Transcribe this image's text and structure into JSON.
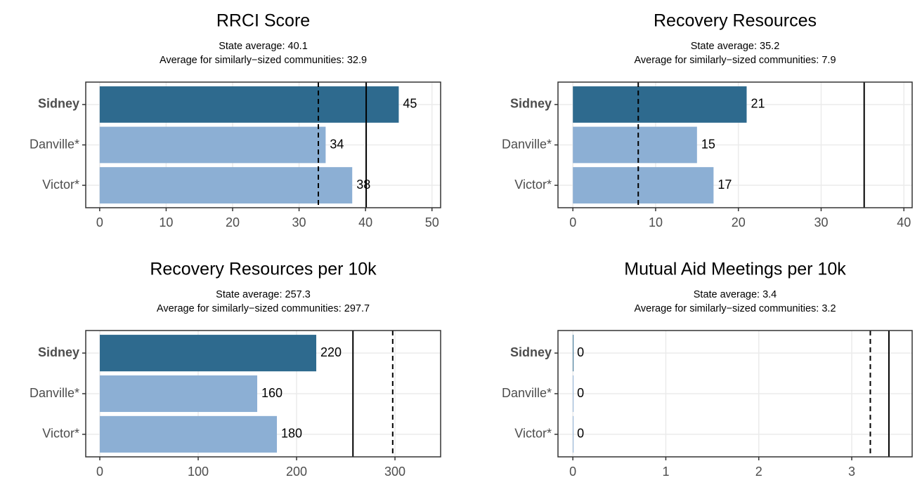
{
  "chart_data": [
    {
      "type": "bar",
      "orientation": "horizontal",
      "title": "RRCI Score",
      "reference_lines": [
        {
          "label": "State average: 40.1",
          "value": 40.1,
          "style": "solid"
        },
        {
          "label": "Average for similarly−sized communities: 32.9",
          "value": 32.9,
          "style": "dashed"
        }
      ],
      "categories": [
        "Sidney",
        "Danville*",
        "Victor*"
      ],
      "values": [
        45,
        34,
        38
      ],
      "colors": [
        "#2e6a8e",
        "#8cafd4",
        "#8cafd4"
      ],
      "highlight": 0,
      "xlim": [
        -2.1,
        51.3
      ],
      "xticks": [
        0,
        10,
        20,
        30,
        40,
        50
      ],
      "grid": true
    },
    {
      "type": "bar",
      "orientation": "horizontal",
      "title": "Recovery Resources",
      "reference_lines": [
        {
          "label": "State average: 35.2",
          "value": 35.2,
          "style": "solid"
        },
        {
          "label": "Average for similarly−sized communities: 7.9",
          "value": 7.9,
          "style": "dashed"
        }
      ],
      "categories": [
        "Sidney",
        "Danville*",
        "Victor*"
      ],
      "values": [
        21,
        15,
        17
      ],
      "colors": [
        "#2e6a8e",
        "#8cafd4",
        "#8cafd4"
      ],
      "highlight": 0,
      "xlim": [
        -1.8,
        41.0
      ],
      "xticks": [
        0,
        10,
        20,
        30,
        40
      ],
      "grid": true
    },
    {
      "type": "bar",
      "orientation": "horizontal",
      "title": "Recovery Resources per 10k",
      "reference_lines": [
        {
          "label": "State average: 257.3",
          "value": 257.3,
          "style": "solid"
        },
        {
          "label": "Average for similarly−sized communities: 297.7",
          "value": 297.7,
          "style": "dashed"
        }
      ],
      "categories": [
        "Sidney",
        "Danville*",
        "Victor*"
      ],
      "values": [
        220,
        160,
        180
      ],
      "colors": [
        "#2e6a8e",
        "#8cafd4",
        "#8cafd4"
      ],
      "highlight": 0,
      "xlim": [
        -14.3,
        346.4
      ],
      "xticks": [
        0,
        100,
        200,
        300
      ],
      "grid": true
    },
    {
      "type": "bar",
      "orientation": "horizontal",
      "title": "Mutual Aid Meetings per 10k",
      "reference_lines": [
        {
          "label": "State average: 3.4",
          "value": 3.4,
          "style": "solid"
        },
        {
          "label": "Average for similarly−sized communities: 3.2",
          "value": 3.2,
          "style": "dashed"
        }
      ],
      "categories": [
        "Sidney",
        "Danville*",
        "Victor*"
      ],
      "values": [
        0,
        0,
        0
      ],
      "colors": [
        "#2e6a8e",
        "#8cafd4",
        "#8cafd4"
      ],
      "highlight": 0,
      "xlim": [
        -0.16,
        3.65
      ],
      "xticks": [
        0,
        1,
        2,
        3
      ],
      "grid": true
    }
  ]
}
